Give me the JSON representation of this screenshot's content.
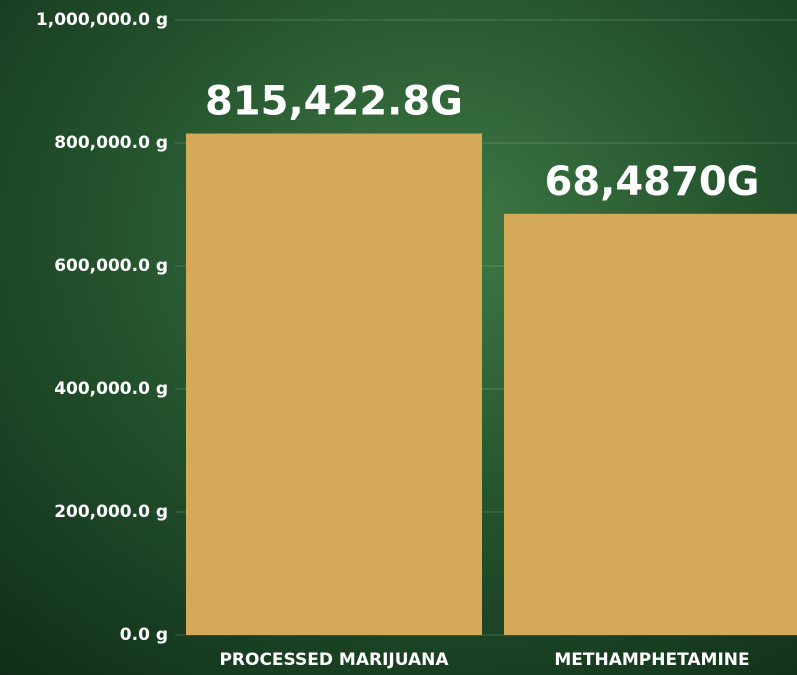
{
  "chart_data": {
    "type": "bar",
    "categories": [
      "PROCESSED MARIJUANA",
      "METHAMPHETAMINE"
    ],
    "values": [
      815422.8,
      684870
    ],
    "value_labels": [
      "815,422.8G",
      "68,4870G"
    ],
    "color": "#d4aa5a",
    "ylim": [
      0,
      1000000
    ],
    "yticks": [
      {
        "value": 0,
        "label": "0.0 g"
      },
      {
        "value": 200000,
        "label": "200,000.0 g"
      },
      {
        "value": 400000,
        "label": "400,000.0 g"
      },
      {
        "value": 600000,
        "label": "600,000.0 g"
      },
      {
        "value": 800000,
        "label": "800,000.0 g"
      },
      {
        "value": 1000000,
        "label": "1,000,000.0 g"
      }
    ],
    "grid": true
  }
}
